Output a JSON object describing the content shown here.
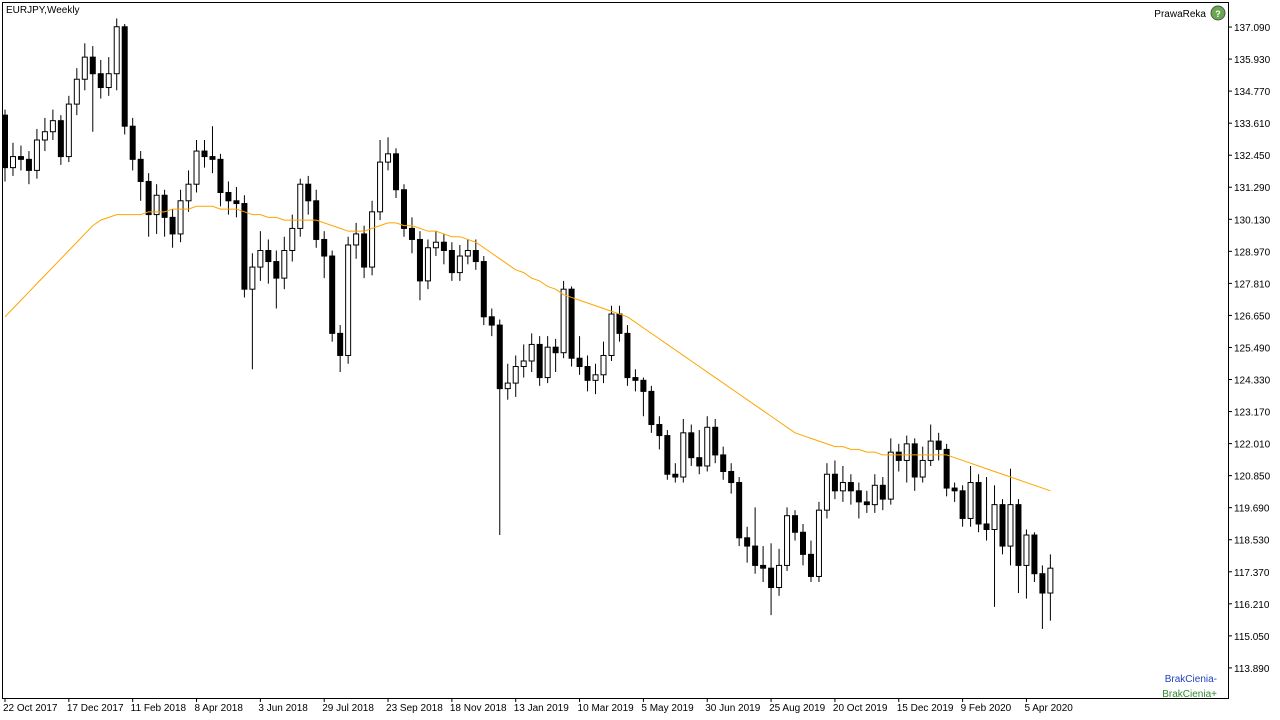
{
  "chart_data": {
    "type": "candlestick",
    "title": "EURJPY,Weekly",
    "annotations": {
      "top_right": "PrawaReka",
      "bottom_1": "BrakCienia-",
      "bottom_2": "BrakCienia+"
    },
    "up_color": "#ffffff",
    "down_color": "#000000",
    "wick_color": "#000000",
    "ylim": [
      112.8,
      137.96
    ],
    "yticks": [
      {
        "value": 137.09,
        "label": "137.090"
      },
      {
        "value": 135.93,
        "label": "135.930"
      },
      {
        "value": 134.77,
        "label": "134.770"
      },
      {
        "value": 133.61,
        "label": "133.610"
      },
      {
        "value": 132.45,
        "label": "132.450"
      },
      {
        "value": 131.29,
        "label": "131.290"
      },
      {
        "value": 130.13,
        "label": "130.130"
      },
      {
        "value": 128.97,
        "label": "128.970"
      },
      {
        "value": 127.81,
        "label": "127.810"
      },
      {
        "value": 126.65,
        "label": "126.650"
      },
      {
        "value": 125.49,
        "label": "125.490"
      },
      {
        "value": 124.33,
        "label": "124.330"
      },
      {
        "value": 123.17,
        "label": "123.170"
      },
      {
        "value": 122.01,
        "label": "122.010"
      },
      {
        "value": 120.85,
        "label": "120.850"
      },
      {
        "value": 119.69,
        "label": "119.690"
      },
      {
        "value": 118.53,
        "label": "118.530"
      },
      {
        "value": 117.37,
        "label": "117.370"
      },
      {
        "value": 116.21,
        "label": "116.210"
      },
      {
        "value": 115.05,
        "label": "115.050"
      },
      {
        "value": 113.89,
        "label": "113.890"
      }
    ],
    "categories": [
      "22 Oct 2017",
      null,
      null,
      null,
      null,
      null,
      null,
      null,
      "17 Dec 2017",
      null,
      null,
      null,
      null,
      null,
      null,
      null,
      "11 Feb 2018",
      null,
      null,
      null,
      null,
      null,
      null,
      null,
      "8 Apr 2018",
      null,
      null,
      null,
      null,
      null,
      null,
      null,
      "3 Jun 2018",
      null,
      null,
      null,
      null,
      null,
      null,
      null,
      "29 Jul 2018",
      null,
      null,
      null,
      null,
      null,
      null,
      null,
      "23 Sep 2018",
      null,
      null,
      null,
      null,
      null,
      null,
      null,
      "18 Nov 2018",
      null,
      null,
      null,
      null,
      null,
      null,
      null,
      "13 Jan 2019",
      null,
      null,
      null,
      null,
      null,
      null,
      null,
      "10 Mar 2019",
      null,
      null,
      null,
      null,
      null,
      null,
      null,
      "5 May 2019",
      null,
      null,
      null,
      null,
      null,
      null,
      null,
      "30 Jun 2019",
      null,
      null,
      null,
      null,
      null,
      null,
      null,
      "25 Aug 2019",
      null,
      null,
      null,
      null,
      null,
      null,
      null,
      "20 Oct 2019",
      null,
      null,
      null,
      null,
      null,
      null,
      null,
      "15 Dec 2019",
      null,
      null,
      null,
      null,
      null,
      null,
      null,
      "9 Feb 2020",
      null,
      null,
      null,
      null,
      null,
      null,
      null,
      "5 Apr 2020",
      null,
      null,
      null
    ],
    "open": [
      133.9,
      132.0,
      132.4,
      132.3,
      131.9,
      133.0,
      133.3,
      133.7,
      132.4,
      134.3,
      135.2,
      136.0,
      135.4,
      134.9,
      135.4,
      137.1,
      133.5,
      132.3,
      131.5,
      130.3,
      131.0,
      130.2,
      129.6,
      130.8,
      131.4,
      132.6,
      132.4,
      132.3,
      131.1,
      130.8,
      130.7,
      127.6,
      128.4,
      129.0,
      128.6,
      128.0,
      129.0,
      129.8,
      131.4,
      130.8,
      129.4,
      128.8,
      126.0,
      125.2,
      129.2,
      129.6,
      128.4,
      130.4,
      132.2,
      132.5,
      131.2,
      129.8,
      129.4,
      127.9,
      129.1,
      129.3,
      129.0,
      128.2,
      128.8,
      129.0,
      128.6,
      126.6,
      126.3,
      124.0,
      124.2,
      124.8,
      125.0,
      125.6,
      124.4,
      125.5,
      125.3,
      127.6,
      125.1,
      124.8,
      124.3,
      124.5,
      125.2,
      126.7,
      126.0,
      124.4,
      124.3,
      123.9,
      122.7,
      122.3,
      120.9,
      120.8,
      122.4,
      121.5,
      121.2,
      122.6,
      121.6,
      121.0,
      120.6,
      118.6,
      118.3,
      117.6,
      117.5,
      116.8,
      117.6,
      119.4,
      118.8,
      118.0,
      117.2,
      119.6,
      120.9,
      120.3,
      120.6,
      120.3,
      119.9,
      119.8,
      120.5,
      120.0,
      121.7,
      121.4,
      122.0,
      120.8,
      121.4,
      122.1,
      121.8,
      120.4,
      120.3,
      119.3,
      120.6,
      119.1,
      118.9,
      119.8,
      118.3,
      119.8,
      117.6,
      118.7,
      117.3,
      116.6
    ],
    "high": [
      134.1,
      132.9,
      132.8,
      132.6,
      133.4,
      133.8,
      134.1,
      133.9,
      134.6,
      135.6,
      136.5,
      136.4,
      135.9,
      136.0,
      137.4,
      137.2,
      133.8,
      132.6,
      131.8,
      131.4,
      131.2,
      130.5,
      131.2,
      131.9,
      133.0,
      133.0,
      133.5,
      132.5,
      131.5,
      131.3,
      131.0,
      128.9,
      129.7,
      129.4,
      129.0,
      129.5,
      130.3,
      131.6,
      131.7,
      131.2,
      129.7,
      129.0,
      126.3,
      129.5,
      130.0,
      129.9,
      130.8,
      133.0,
      133.1,
      132.7,
      131.4,
      130.2,
      129.7,
      129.4,
      129.7,
      129.6,
      129.3,
      129.2,
      129.4,
      129.4,
      128.8,
      126.9,
      126.5,
      124.9,
      125.2,
      125.6,
      126.0,
      125.9,
      125.9,
      125.8,
      127.9,
      127.7,
      125.9,
      125.2,
      124.9,
      125.7,
      127.0,
      127.0,
      126.3,
      124.7,
      124.4,
      124.1,
      123.0,
      122.5,
      121.3,
      122.9,
      122.7,
      122.5,
      123.0,
      122.9,
      121.9,
      121.3,
      120.8,
      119.0,
      119.7,
      118.3,
      118.4,
      118.2,
      119.7,
      119.6,
      119.1,
      118.5,
      119.9,
      121.3,
      121.4,
      121.2,
      120.9,
      120.6,
      120.3,
      120.9,
      120.8,
      122.2,
      122.0,
      122.3,
      122.2,
      121.9,
      122.7,
      122.4,
      122.0,
      120.6,
      120.5,
      121.2,
      120.9,
      120.8,
      120.5,
      120.0,
      121.1,
      120.0,
      118.9,
      118.8,
      117.6,
      118.0
    ],
    "low": [
      131.5,
      131.7,
      131.9,
      131.4,
      131.6,
      132.6,
      133.0,
      132.1,
      132.2,
      133.9,
      134.8,
      133.3,
      134.5,
      134.6,
      134.8,
      133.2,
      131.9,
      130.8,
      129.5,
      129.6,
      129.5,
      129.1,
      129.3,
      130.4,
      131.1,
      132.0,
      131.8,
      130.6,
      130.3,
      130.2,
      127.3,
      124.7,
      127.9,
      127.8,
      126.9,
      127.6,
      128.6,
      129.5,
      130.3,
      129.1,
      128.0,
      125.7,
      124.6,
      124.9,
      128.7,
      128.0,
      128.1,
      130.1,
      131.9,
      130.9,
      129.5,
      128.9,
      127.2,
      127.6,
      128.8,
      128.5,
      127.9,
      127.9,
      128.5,
      128.3,
      126.3,
      125.9,
      118.7,
      123.6,
      123.7,
      124.4,
      124.6,
      124.1,
      124.2,
      124.6,
      125.1,
      124.8,
      124.5,
      123.9,
      123.8,
      124.2,
      125.0,
      125.7,
      124.1,
      123.9,
      123.0,
      122.4,
      121.8,
      120.7,
      120.6,
      120.6,
      121.2,
      120.9,
      121.0,
      121.3,
      120.7,
      120.2,
      118.3,
      117.7,
      117.3,
      117.0,
      115.8,
      116.5,
      117.4,
      118.5,
      117.6,
      117.0,
      117.0,
      119.3,
      120.0,
      119.9,
      119.8,
      119.3,
      119.5,
      119.5,
      119.6,
      119.8,
      121.0,
      120.6,
      120.3,
      120.6,
      121.2,
      121.4,
      120.1,
      119.9,
      119.0,
      119.0,
      118.8,
      118.5,
      116.1,
      118.0,
      117.6,
      116.6,
      116.4,
      117.0,
      115.3,
      115.6
    ],
    "close": [
      132.0,
      132.4,
      132.3,
      131.9,
      133.0,
      133.3,
      133.7,
      132.4,
      134.3,
      135.2,
      136.0,
      135.4,
      134.9,
      135.4,
      137.1,
      133.5,
      132.3,
      131.5,
      130.3,
      131.0,
      130.2,
      129.6,
      130.8,
      131.4,
      132.6,
      132.4,
      132.3,
      131.1,
      130.8,
      130.7,
      127.6,
      128.4,
      129.0,
      128.6,
      128.0,
      129.0,
      129.8,
      131.4,
      130.8,
      129.4,
      128.8,
      126.0,
      125.2,
      129.2,
      129.6,
      128.4,
      130.4,
      132.2,
      132.5,
      131.2,
      129.8,
      129.4,
      127.9,
      129.1,
      129.3,
      129.0,
      128.2,
      128.8,
      129.0,
      128.6,
      126.6,
      126.3,
      124.0,
      124.2,
      124.8,
      125.0,
      125.6,
      124.4,
      125.5,
      125.3,
      127.6,
      125.1,
      124.8,
      124.3,
      124.5,
      125.2,
      126.7,
      126.0,
      124.4,
      124.3,
      123.9,
      122.7,
      122.3,
      120.9,
      120.8,
      122.4,
      121.5,
      121.2,
      122.6,
      121.6,
      121.0,
      120.6,
      118.6,
      118.3,
      117.6,
      117.5,
      116.8,
      117.6,
      119.4,
      118.8,
      118.0,
      117.2,
      119.6,
      120.9,
      120.3,
      120.6,
      120.3,
      119.9,
      119.8,
      120.5,
      120.0,
      121.7,
      121.4,
      122.0,
      120.8,
      121.4,
      122.1,
      121.8,
      120.4,
      120.3,
      119.3,
      120.6,
      119.1,
      118.9,
      119.8,
      118.3,
      119.8,
      117.6,
      118.7,
      117.3,
      116.6,
      117.5
    ],
    "moving_average": {
      "color": "#ffa500",
      "values": [
        126.6,
        126.9,
        127.2,
        127.5,
        127.8,
        128.1,
        128.4,
        128.7,
        129.0,
        129.3,
        129.6,
        129.9,
        130.1,
        130.2,
        130.3,
        130.3,
        130.3,
        130.3,
        130.4,
        130.4,
        130.4,
        130.5,
        130.5,
        130.5,
        130.6,
        130.6,
        130.6,
        130.5,
        130.5,
        130.5,
        130.4,
        130.3,
        130.3,
        130.2,
        130.2,
        130.1,
        130.1,
        130.1,
        130.1,
        130.1,
        130.0,
        129.9,
        129.8,
        129.7,
        129.7,
        129.7,
        129.8,
        129.9,
        130.0,
        130.0,
        129.9,
        129.9,
        129.8,
        129.7,
        129.7,
        129.6,
        129.5,
        129.5,
        129.4,
        129.3,
        129.1,
        128.9,
        128.7,
        128.5,
        128.3,
        128.2,
        128.0,
        127.9,
        127.7,
        127.6,
        127.4,
        127.3,
        127.2,
        127.1,
        127.0,
        126.9,
        126.8,
        126.7,
        126.6,
        126.4,
        126.2,
        126.0,
        125.8,
        125.6,
        125.4,
        125.2,
        125.0,
        124.8,
        124.6,
        124.4,
        124.2,
        124.0,
        123.8,
        123.6,
        123.4,
        123.2,
        123.0,
        122.8,
        122.6,
        122.4,
        122.3,
        122.2,
        122.1,
        122.0,
        121.9,
        121.9,
        121.8,
        121.8,
        121.7,
        121.7,
        121.6,
        121.6,
        121.6,
        121.6,
        121.6,
        121.6,
        121.6,
        121.6,
        121.6,
        121.5,
        121.4,
        121.3,
        121.2,
        121.1,
        121.0,
        120.9,
        120.8,
        120.7,
        120.6,
        120.5,
        120.4,
        120.3
      ]
    }
  }
}
